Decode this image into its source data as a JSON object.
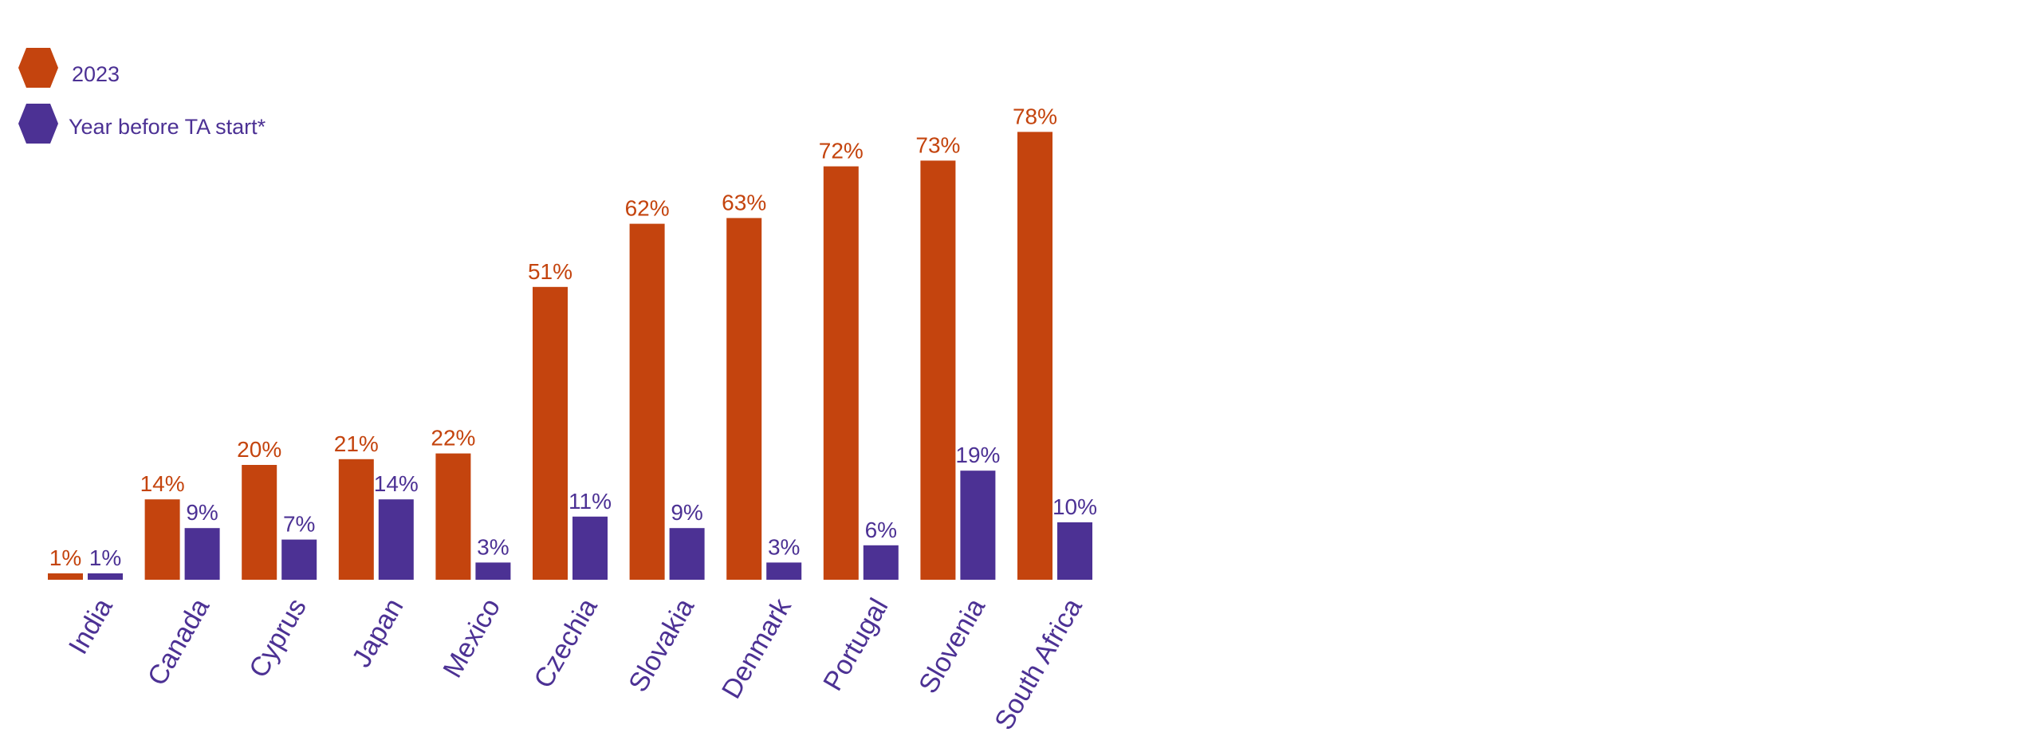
{
  "colors": {
    "series_2023": "#C4440E",
    "series_before": "#4C3194",
    "category_label": "#4C3194"
  },
  "legend": {
    "items": [
      {
        "label": "2023",
        "color": "#C4440E",
        "icon": "hexagon-icon"
      },
      {
        "label": "Year before TA start*",
        "color": "#4C3194",
        "icon": "hexagon-icon"
      }
    ]
  },
  "chart_data": {
    "type": "bar",
    "categories": [
      "India",
      "Canada",
      "Cyprus",
      "Japan",
      "Mexico",
      "Czechia",
      "Slovakia",
      "Denmark",
      "Portugal",
      "Slovenia",
      "South Africa"
    ],
    "series": [
      {
        "name": "2023",
        "values": [
          1,
          14,
          20,
          21,
          22,
          51,
          62,
          63,
          72,
          73,
          78
        ],
        "labels": [
          "1%",
          "14%",
          "20%",
          "21%",
          "22%",
          "51%",
          "62%",
          "63%",
          "72%",
          "73%",
          "78%"
        ]
      },
      {
        "name": "Year before TA start*",
        "values": [
          1,
          9,
          7,
          14,
          3,
          11,
          9,
          3,
          6,
          19,
          10
        ],
        "labels": [
          "1%",
          "9%",
          "7%",
          "14%",
          "3%",
          "11%",
          "9%",
          "3%",
          "6%",
          "19%",
          "10%"
        ]
      }
    ],
    "ylim": [
      0,
      80
    ],
    "grid": false,
    "legend_position": "top-left",
    "xlabel": "",
    "ylabel": ""
  }
}
